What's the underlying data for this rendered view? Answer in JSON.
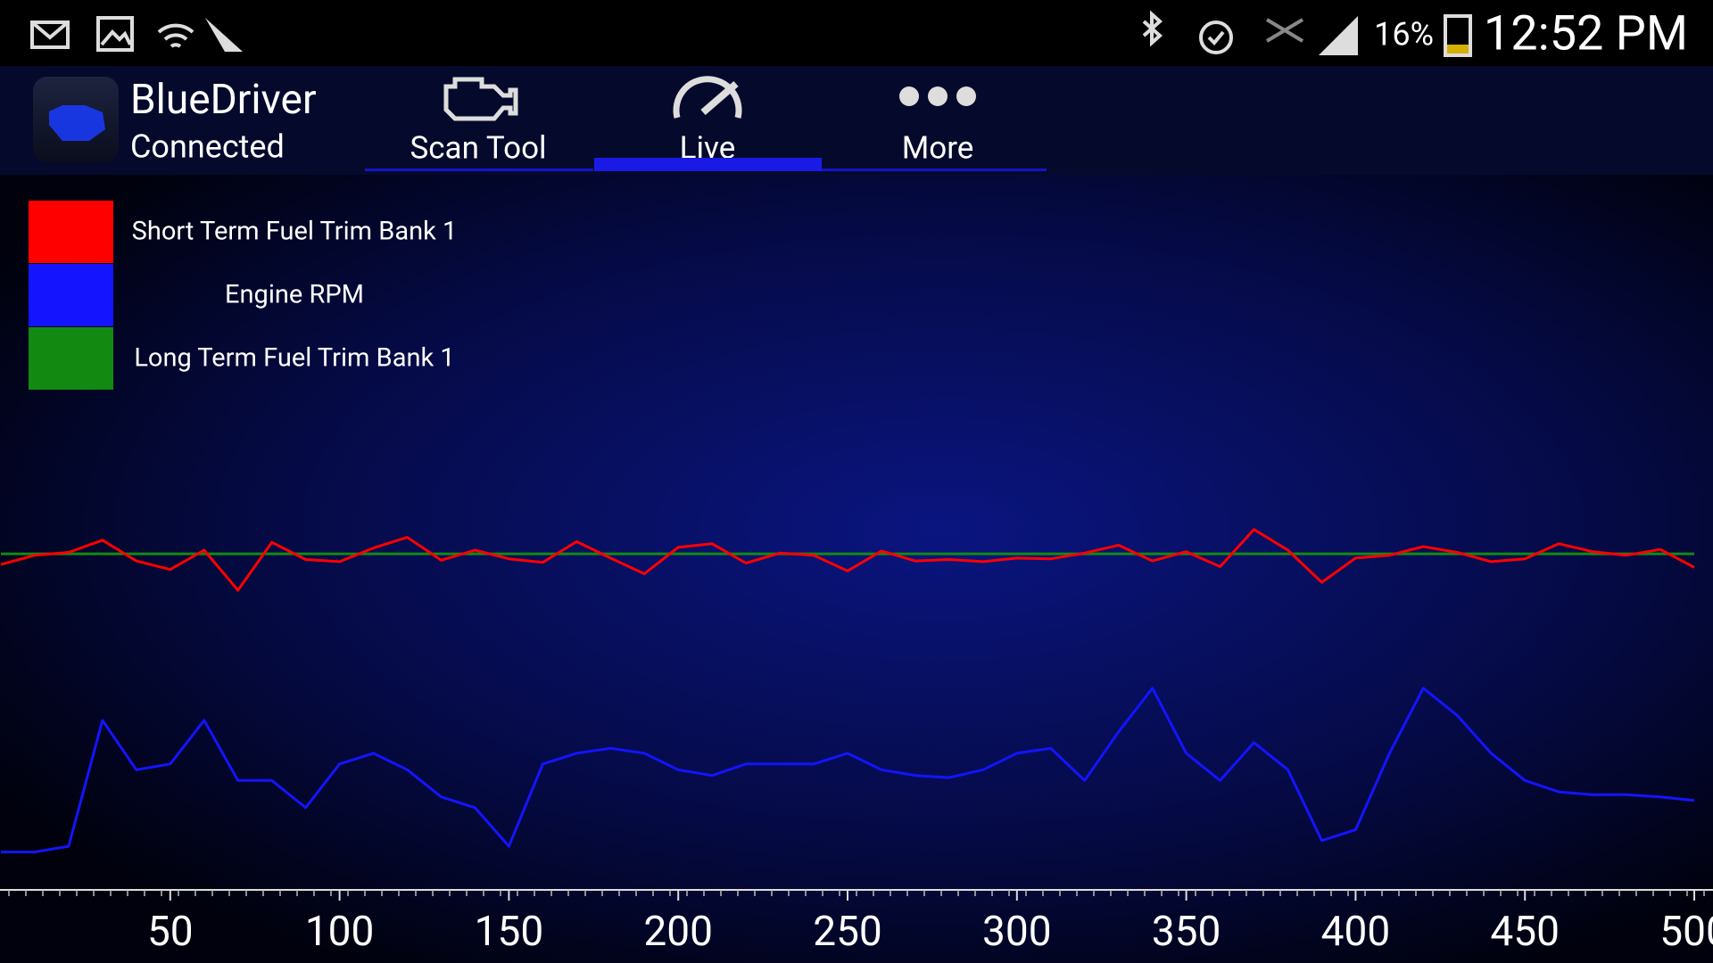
{
  "status_bar": {
    "battery": "16%",
    "time": "12:52 PM"
  },
  "header": {
    "app_name": "BlueDriver",
    "status": "Connected"
  },
  "tabs": [
    "Scan Tool",
    "Live",
    "More"
  ],
  "chart_data": {
    "type": "line",
    "x": [
      0,
      10,
      20,
      30,
      40,
      50,
      60,
      70,
      80,
      90,
      100,
      110,
      120,
      130,
      140,
      150,
      160,
      170,
      180,
      190,
      200,
      210,
      220,
      230,
      240,
      250,
      260,
      270,
      280,
      290,
      300,
      310,
      320,
      330,
      340,
      350,
      360,
      370,
      380,
      390,
      400,
      410,
      420,
      430,
      440,
      450,
      460,
      470,
      480,
      490,
      500
    ],
    "series": [
      {
        "name": "Short Term Fuel Trim Bank 1",
        "color": "#ff0000",
        "values": [
          45.5,
          46.8,
          47.2,
          48.9,
          46,
          44.8,
          47.5,
          41.9,
          48.6,
          46.2,
          45.9,
          47.8,
          49.3,
          46.1,
          47.5,
          46.3,
          45.8,
          48.7,
          46.4,
          44.2,
          47.9,
          48.4,
          45.7,
          47.1,
          46.8,
          44.6,
          47.4,
          46,
          46.2,
          45.9,
          46.4,
          46.3,
          47.1,
          48.2,
          46,
          47.3,
          45.2,
          50.4,
          47.5,
          43,
          46.4,
          46.8,
          48,
          47.2,
          45.9,
          46.3,
          48.4,
          47.3,
          46.8,
          47.6,
          45.1
        ]
      },
      {
        "name": "Engine RPM",
        "color": "#1414ff",
        "values": [
          5.3,
          5.3,
          6.1,
          23.7,
          16.8,
          17.6,
          23.7,
          15.3,
          15.3,
          11.5,
          17.6,
          19.1,
          16.8,
          13.0,
          11.5,
          6.1,
          17.6,
          19.1,
          19.8,
          19.1,
          16.8,
          16.0,
          17.6,
          17.6,
          17.6,
          19.1,
          16.8,
          16.0,
          15.7,
          16.8,
          19.1,
          19.8,
          15.3,
          22.1,
          28.2,
          19.1,
          15.3,
          20.6,
          16.8,
          6.9,
          8.4,
          19.1,
          28.2,
          24.4,
          19.1,
          15.3,
          13.7,
          13.3,
          13.3,
          13.0,
          12.5
        ]
      },
      {
        "name": "Long Term Fuel Trim Bank 1",
        "color": "#128a12",
        "values": [
          47,
          47,
          47,
          47,
          47,
          47,
          47,
          47,
          47,
          47,
          47,
          47,
          47,
          47,
          47,
          47,
          47,
          47,
          47,
          47,
          47,
          47,
          47,
          47,
          47,
          47,
          47,
          47,
          47,
          47,
          47,
          47,
          47,
          47,
          47,
          47,
          47,
          47,
          47,
          47,
          47,
          47,
          47,
          47,
          47,
          47,
          47,
          47,
          47,
          47,
          47
        ]
      }
    ],
    "xlim": [
      0,
      505
    ],
    "ylim": [
      0,
      100
    ],
    "xticks": [
      50,
      100,
      150,
      200,
      250,
      300,
      350,
      400,
      450,
      500
    ]
  }
}
